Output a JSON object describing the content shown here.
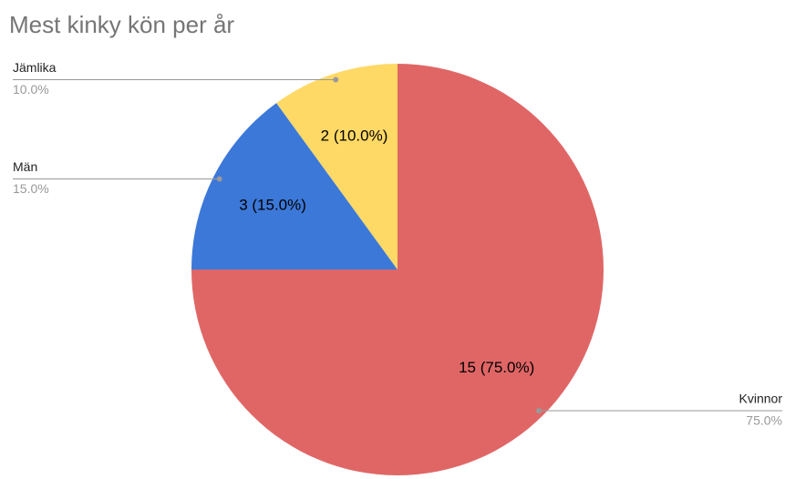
{
  "chart_data": {
    "type": "pie",
    "title": "Mest kinky kön per år",
    "categories": [
      "Kvinnor",
      "Män",
      "Jämlika"
    ],
    "values": [
      15,
      3,
      2
    ],
    "value_labels": [
      "15 (75.0%)",
      "3 (15.0%)",
      "2 (10.0%)"
    ],
    "share_labels": [
      "75.0%",
      "15.0%",
      "10.0%"
    ],
    "colors": [
      "#e06666",
      "#3c78d8",
      "#ffd966"
    ]
  }
}
